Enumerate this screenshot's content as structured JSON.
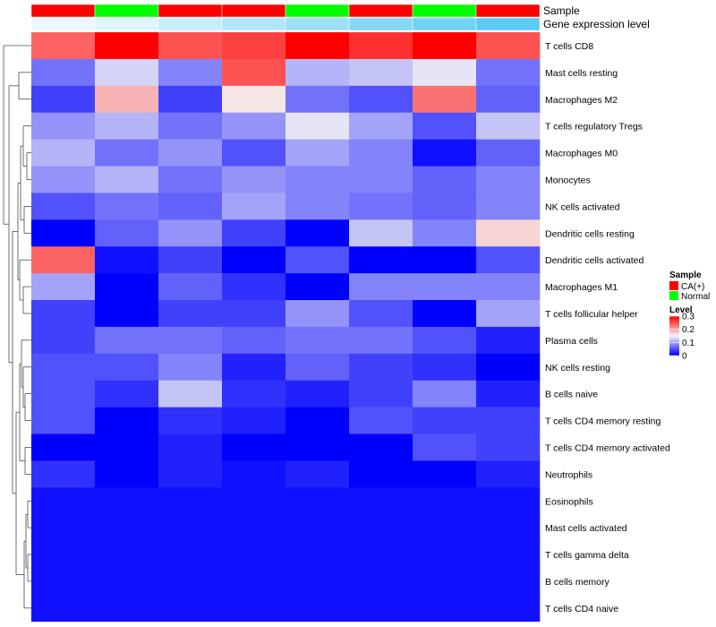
{
  "chart_data": {
    "type": "heatmap",
    "title": "",
    "annotation_rows": [
      {
        "label": "Sample",
        "values": [
          "CA(+)",
          "Normal",
          "CA(+)",
          "CA(+)",
          "Normal",
          "CA(+)",
          "Normal",
          "CA(+)"
        ]
      },
      {
        "label": "Gene expression level",
        "values": [
          0.05,
          0.12,
          0.28,
          0.42,
          0.55,
          0.68,
          0.8,
          0.95
        ]
      }
    ],
    "rows": [
      "T cells CD8",
      "Mast cells resting",
      "Macrophages M2",
      "T cells regulatory  Tregs",
      "Macrophages M0",
      "Monocytes",
      "NK cells activated",
      "Dendritic cells resting",
      "Dendritic cells activated",
      "Macrophages M1",
      "T cells follicular helper",
      "Plasma cells",
      "NK cells resting",
      "B cells naive",
      "T cells CD4 memory resting",
      "T cells CD4 memory activated",
      "Neutrophils",
      "Eosinophils",
      "Mast cells activated",
      "T cells gamma delta",
      "B cells memory",
      "T cells CD4 naive"
    ],
    "values": [
      [
        0.24,
        0.3,
        0.25,
        0.26,
        0.3,
        0.27,
        0.3,
        0.25
      ],
      [
        0.07,
        0.13,
        0.08,
        0.25,
        0.11,
        0.12,
        0.14,
        0.07
      ],
      [
        0.04,
        0.19,
        0.04,
        0.16,
        0.07,
        0.05,
        0.23,
        0.06
      ],
      [
        0.09,
        0.11,
        0.07,
        0.09,
        0.14,
        0.1,
        0.05,
        0.12
      ],
      [
        0.11,
        0.07,
        0.09,
        0.05,
        0.1,
        0.08,
        0.01,
        0.06
      ],
      [
        0.09,
        0.11,
        0.07,
        0.09,
        0.08,
        0.08,
        0.06,
        0.08
      ],
      [
        0.05,
        0.07,
        0.06,
        0.1,
        0.08,
        0.07,
        0.06,
        0.08
      ],
      [
        0.0,
        0.06,
        0.09,
        0.04,
        0.0,
        0.12,
        0.08,
        0.17
      ],
      [
        0.24,
        0.01,
        0.04,
        0.0,
        0.05,
        0.0,
        0.0,
        0.05
      ],
      [
        0.1,
        0.0,
        0.06,
        0.03,
        0.0,
        0.08,
        0.08,
        0.08
      ],
      [
        0.04,
        0.0,
        0.04,
        0.04,
        0.09,
        0.05,
        0.0,
        0.1
      ],
      [
        0.04,
        0.07,
        0.07,
        0.06,
        0.07,
        0.07,
        0.05,
        0.02
      ],
      [
        0.05,
        0.05,
        0.08,
        0.02,
        0.06,
        0.04,
        0.03,
        0.0
      ],
      [
        0.05,
        0.03,
        0.12,
        0.03,
        0.02,
        0.04,
        0.08,
        0.02
      ],
      [
        0.05,
        0.0,
        0.03,
        0.02,
        0.0,
        0.05,
        0.04,
        0.04
      ],
      [
        0.0,
        0.0,
        0.02,
        0.0,
        0.0,
        0.0,
        0.05,
        0.04
      ],
      [
        0.03,
        0.0,
        0.02,
        0.01,
        0.02,
        0.0,
        0.0,
        0.02
      ],
      [
        0.01,
        0.01,
        0.01,
        0.01,
        0.01,
        0.01,
        0.01,
        0.01
      ],
      [
        0.01,
        0.01,
        0.01,
        0.01,
        0.01,
        0.01,
        0.01,
        0.01
      ],
      [
        0.01,
        0.01,
        0.01,
        0.01,
        0.01,
        0.01,
        0.01,
        0.01
      ],
      [
        0.01,
        0.01,
        0.01,
        0.01,
        0.01,
        0.01,
        0.01,
        0.01
      ],
      [
        0.01,
        0.01,
        0.01,
        0.01,
        0.01,
        0.01,
        0.01,
        0.01
      ]
    ],
    "color_scale": {
      "min": 0,
      "mid": 0.15,
      "max": 0.3,
      "low_color": "#0000ff",
      "mid_color": "#f5f5f5",
      "high_color": "#ff0000"
    },
    "row_dendrogram": true,
    "legends": [
      {
        "title": "Sample",
        "items": [
          {
            "label": "CA(+)",
            "color": "#ff0000"
          },
          {
            "label": "Normal",
            "color": "#00ff00"
          }
        ]
      },
      {
        "title": "Level",
        "ticks": [
          {
            "value": 0.3,
            "label": "0.3"
          },
          {
            "value": 0.2,
            "label": "0.2"
          },
          {
            "value": 0.1,
            "label": "0.1"
          },
          {
            "value": 0,
            "label": "0"
          }
        ]
      }
    ]
  },
  "colors": {
    "ca_plus": "#ff0000",
    "normal": "#00ff00",
    "gel_low": "#f2fbfe",
    "gel_high": "#55c8f0"
  }
}
